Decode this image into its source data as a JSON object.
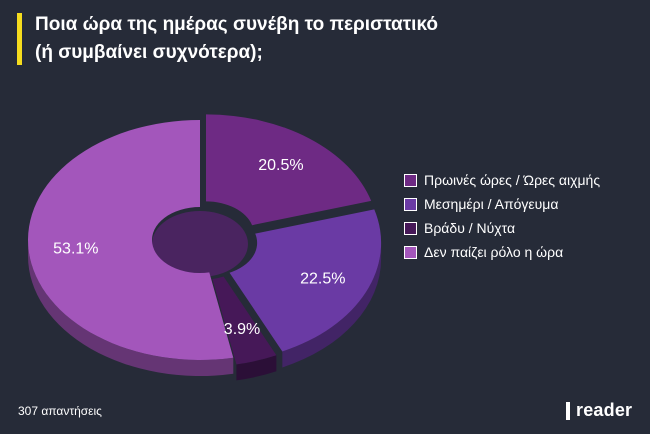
{
  "header": {
    "title_line1": "Ποια ώρα της ημέρας συνέβη το περιστατικό",
    "title_line2": "(ή συμβαίνει συχνότερα);",
    "accent_color": "#f5dc1e"
  },
  "chart_data": {
    "type": "pie",
    "variant": "3d-donut-exploded",
    "title": "Ποια ώρα της ημέρας συνέβη το περιστατικό (ή συμβαίνει συχνότερα);",
    "legend_position": "right",
    "series": [
      {
        "name": "Πρωινές ώρες / Ώρες αιχμής",
        "value": 20.5,
        "label": "20.5%",
        "color": "#6e2a84"
      },
      {
        "name": "Μεσημέρι / Απόγευμα",
        "value": 22.5,
        "label": "22.5%",
        "color": "#6a3aa4"
      },
      {
        "name": "Βράδυ / Νύχτα",
        "value": 3.9,
        "label": "3.9%",
        "color": "#461858"
      },
      {
        "name": "Δεν παίζει ρόλο η ώρα",
        "value": 53.1,
        "label": "53.1%",
        "color": "#a356bb"
      }
    ],
    "draw_order": [
      0,
      2,
      3,
      1
    ]
  },
  "footer": {
    "responses": "307 απαντήσεις",
    "brand": "reader"
  }
}
